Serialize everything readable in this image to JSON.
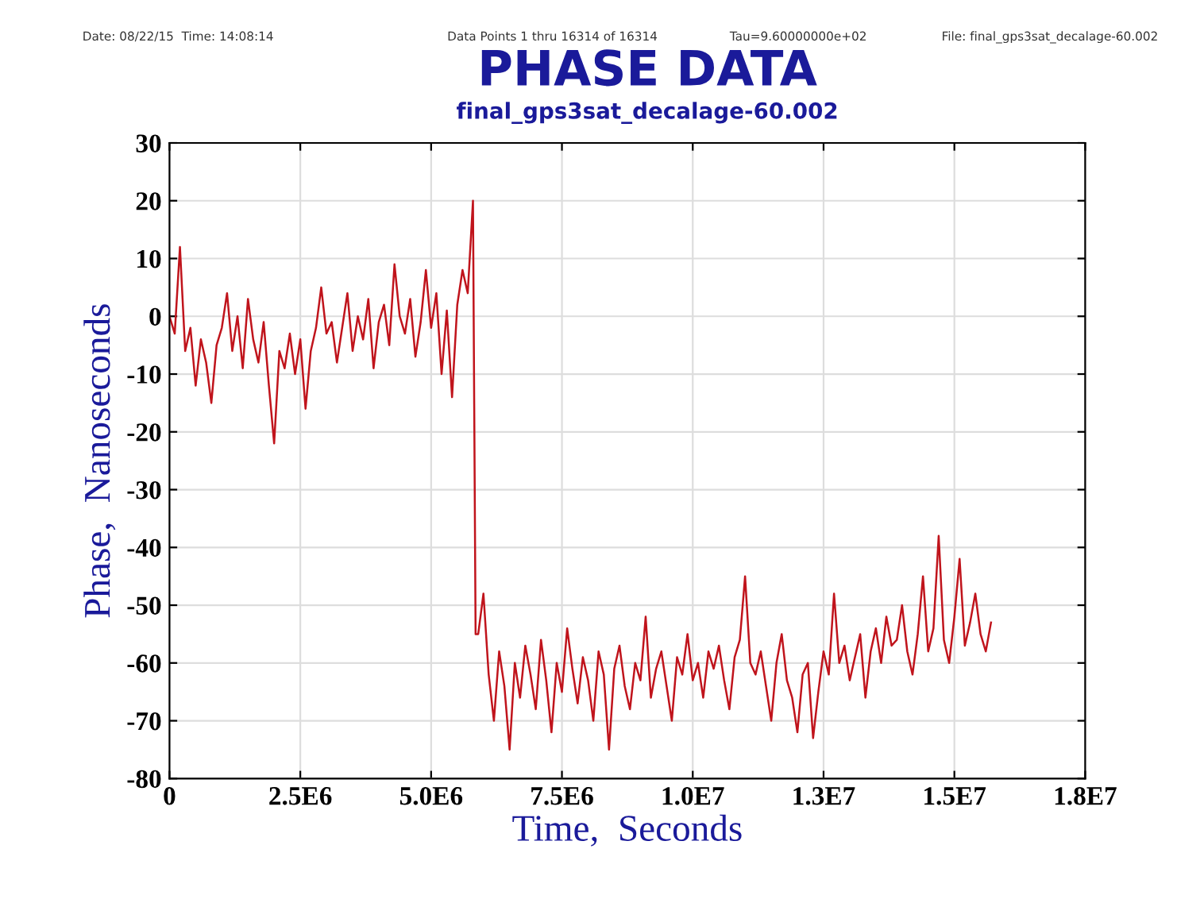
{
  "chart_data": {
    "type": "line",
    "title": "PHASE DATA",
    "subtitle": "final_gps3sat_decalage-60.002",
    "xlabel": "Time,  Seconds",
    "ylabel": "Phase,  Nanoseconds",
    "annotations": [
      "Date: 08/22/15  Time: 14:08:14",
      "Data Points 1 thru 16314 of 16314",
      "Tau=9.60000000e+02",
      "File: final_gps3sat_decalage-60.002"
    ],
    "xlim": [
      0,
      17500000
    ],
    "xticks": [
      0,
      {
        "value": 2500000,
        "label": "2.5E6"
      },
      {
        "value": 5000000,
        "label": "5.0E6"
      },
      {
        "value": 7500000,
        "label": "7.5E6"
      },
      {
        "value": 10000000,
        "label": "1.0E7"
      },
      {
        "value": 12500000,
        "label": "1.3E7"
      },
      {
        "value": 15000000,
        "label": "1.5E7"
      },
      {
        "value": 17500000,
        "label": "1.8E7"
      }
    ],
    "ylim": [
      -80,
      30
    ],
    "yticks": [
      -80,
      -70,
      -60,
      -50,
      -40,
      -30,
      -20,
      -10,
      0,
      10,
      20,
      30
    ],
    "grid": true,
    "legend": false,
    "marker": "none",
    "line_style": "solid",
    "series": [
      {
        "color": "#c0141c",
        "x": [
          0,
          100000,
          200000,
          300000,
          400000,
          500000,
          600000,
          700000,
          800000,
          900000,
          1000000,
          1100000,
          1200000,
          1300000,
          1400000,
          1500000,
          1600000,
          1700000,
          1800000,
          1900000,
          2000000,
          2100000,
          2200000,
          2300000,
          2400000,
          2500000,
          2600000,
          2700000,
          2800000,
          2900000,
          3000000,
          3100000,
          3200000,
          3300000,
          3400000,
          3500000,
          3600000,
          3700000,
          3800000,
          3900000,
          4000000,
          4100000,
          4200000,
          4300000,
          4400000,
          4500000,
          4600000,
          4700000,
          4800000,
          4900000,
          5000000,
          5100000,
          5200000,
          5300000,
          5400000,
          5500000,
          5600000,
          5700000,
          5800000,
          5850000,
          5900000,
          6000000,
          6100000,
          6200000,
          6300000,
          6400000,
          6500000,
          6600000,
          6700000,
          6800000,
          6900000,
          7000000,
          7100000,
          7200000,
          7300000,
          7400000,
          7500000,
          7600000,
          7700000,
          7800000,
          7900000,
          8000000,
          8100000,
          8200000,
          8300000,
          8400000,
          8500000,
          8600000,
          8700000,
          8800000,
          8900000,
          9000000,
          9100000,
          9200000,
          9300000,
          9400000,
          9500000,
          9600000,
          9700000,
          9800000,
          9900000,
          10000000,
          10100000,
          10200000,
          10300000,
          10400000,
          10500000,
          10600000,
          10700000,
          10800000,
          10900000,
          11000000,
          11100000,
          11200000,
          11300000,
          11400000,
          11500000,
          11600000,
          11700000,
          11800000,
          11900000,
          12000000,
          12100000,
          12200000,
          12300000,
          12400000,
          12500000,
          12600000,
          12700000,
          12800000,
          12900000,
          13000000,
          13100000,
          13200000,
          13300000,
          13400000,
          13500000,
          13600000,
          13700000,
          13800000,
          13900000,
          14000000,
          14100000,
          14200000,
          14300000,
          14400000,
          14500000,
          14600000,
          14700000,
          14800000,
          14900000,
          15000000,
          15100000,
          15200000,
          15300000,
          15400000,
          15500000,
          15600000,
          15700000
        ],
        "values": [
          0,
          -3,
          12,
          -6,
          -2,
          -12,
          -4,
          -8,
          -15,
          -5,
          -2,
          4,
          -6,
          0,
          -9,
          3,
          -4,
          -8,
          -1,
          -12,
          -22,
          -6,
          -9,
          -3,
          -10,
          -4,
          -16,
          -6,
          -2,
          5,
          -3,
          -1,
          -8,
          -2,
          4,
          -6,
          0,
          -4,
          3,
          -9,
          -1,
          2,
          -5,
          9,
          0,
          -3,
          3,
          -7,
          -1,
          8,
          -2,
          4,
          -10,
          1,
          -14,
          2,
          8,
          4,
          20,
          -55,
          -55,
          -48,
          -62,
          -70,
          -58,
          -64,
          -75,
          -60,
          -66,
          -57,
          -62,
          -68,
          -56,
          -63,
          -72,
          -60,
          -65,
          -54,
          -61,
          -67,
          -59,
          -63,
          -70,
          -58,
          -62,
          -75,
          -61,
          -57,
          -64,
          -68,
          -60,
          -63,
          -52,
          -66,
          -61,
          -58,
          -64,
          -70,
          -59,
          -62,
          -55,
          -63,
          -60,
          -66,
          -58,
          -61,
          -57,
          -63,
          -68,
          -59,
          -56,
          -45,
          -60,
          -62,
          -58,
          -64,
          -70,
          -60,
          -55,
          -63,
          -66,
          -72,
          -62,
          -60,
          -73,
          -65,
          -58,
          -62,
          -48,
          -60,
          -57,
          -63,
          -59,
          -55,
          -66,
          -58,
          -54,
          -60,
          -52,
          -57,
          -56,
          -50,
          -58,
          -62,
          -55,
          -45,
          -58,
          -54,
          -38,
          -56,
          -60,
          -52,
          -42,
          -57,
          -53,
          -48,
          -55,
          -58,
          -53
        ]
      }
    ]
  }
}
